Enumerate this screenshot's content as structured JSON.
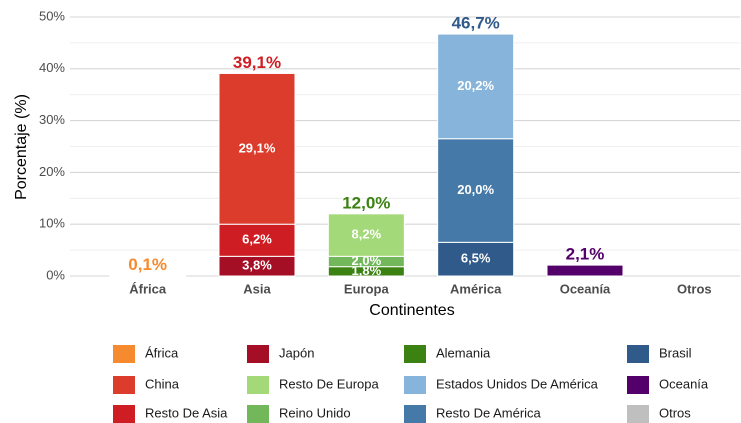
{
  "chart_data": {
    "type": "stacked_bar",
    "x_label": "Continentes",
    "y_label": "Porcentaje (%)",
    "categories": [
      "África",
      "Asia",
      "Europa",
      "América",
      "Oceanía",
      "Otros"
    ],
    "ylim": [
      0,
      50
    ],
    "yticks": [
      {
        "value": 0,
        "label": "0%"
      },
      {
        "value": 10,
        "label": "10%"
      },
      {
        "value": 20,
        "label": "20%"
      },
      {
        "value": 30,
        "label": "30%"
      },
      {
        "value": 40,
        "label": "40%"
      },
      {
        "value": 50,
        "label": "50%"
      }
    ],
    "yminor": [
      5,
      15,
      25,
      35,
      45
    ],
    "grid": true,
    "legend": "bottom",
    "series": [
      {
        "name": "África",
        "color": "#f58a2f",
        "values": [
          0.1,
          null,
          null,
          null,
          null,
          null
        ]
      },
      {
        "name": "China",
        "color": "#db3c2c",
        "values": [
          null,
          29.1,
          null,
          null,
          null,
          null
        ],
        "value_labels": [
          null,
          "29,1%",
          null,
          null,
          null,
          null
        ]
      },
      {
        "name": "Resto De Asia",
        "color": "#cf1e23",
        "values": [
          null,
          6.2,
          null,
          null,
          null,
          null
        ],
        "value_labels": [
          null,
          "6,2%",
          null,
          null,
          null,
          null
        ]
      },
      {
        "name": "Japón",
        "color": "#a50f26",
        "values": [
          null,
          3.8,
          null,
          null,
          null,
          null
        ],
        "value_labels": [
          null,
          "3,8%",
          null,
          null,
          null,
          null
        ]
      },
      {
        "name": "Resto De Europa",
        "color": "#a3d978",
        "values": [
          null,
          null,
          8.2,
          null,
          null,
          null
        ],
        "value_labels": [
          null,
          null,
          "8,2%",
          null,
          null,
          null
        ]
      },
      {
        "name": "Reino Unido",
        "color": "#72b85a",
        "values": [
          null,
          null,
          2.0,
          null,
          null,
          null
        ],
        "value_labels": [
          null,
          null,
          "2,0%",
          null,
          null,
          null
        ]
      },
      {
        "name": "Alemania",
        "color": "#3b8212",
        "values": [
          null,
          null,
          1.8,
          null,
          null,
          null
        ],
        "value_labels": [
          null,
          null,
          "1,8%",
          null,
          null,
          null
        ]
      },
      {
        "name": "Estados Unidos De América",
        "color": "#86b4da",
        "values": [
          null,
          null,
          null,
          20.2,
          null,
          null
        ],
        "value_labels": [
          null,
          null,
          null,
          "20,2%",
          null,
          null
        ]
      },
      {
        "name": "Resto De América",
        "color": "#4479a8",
        "values": [
          null,
          null,
          null,
          20.0,
          null,
          null
        ],
        "value_labels": [
          null,
          null,
          null,
          "20,0%",
          null,
          null
        ]
      },
      {
        "name": "Brasil",
        "color": "#2f5a89",
        "values": [
          null,
          null,
          null,
          6.5,
          null,
          null
        ],
        "value_labels": [
          null,
          null,
          null,
          "6,5%",
          null,
          null
        ]
      },
      {
        "name": "Oceanía",
        "color": "#54006b",
        "values": [
          null,
          null,
          null,
          null,
          2.1,
          null
        ]
      },
      {
        "name": "Otros",
        "color": "#bfbfbf",
        "values": [
          null,
          null,
          null,
          null,
          null,
          null
        ]
      }
    ],
    "totals": {
      "values": [
        0.1,
        39.1,
        12.0,
        46.7,
        2.1,
        null
      ],
      "value_labels": [
        "0,1%",
        "39,1%",
        "12,0%",
        "46,7%",
        "2,1%",
        null
      ],
      "colors": [
        "#f58a2f",
        "#cf1e23",
        "#3b8212",
        "#2f5a89",
        "#54006b",
        null
      ]
    }
  }
}
